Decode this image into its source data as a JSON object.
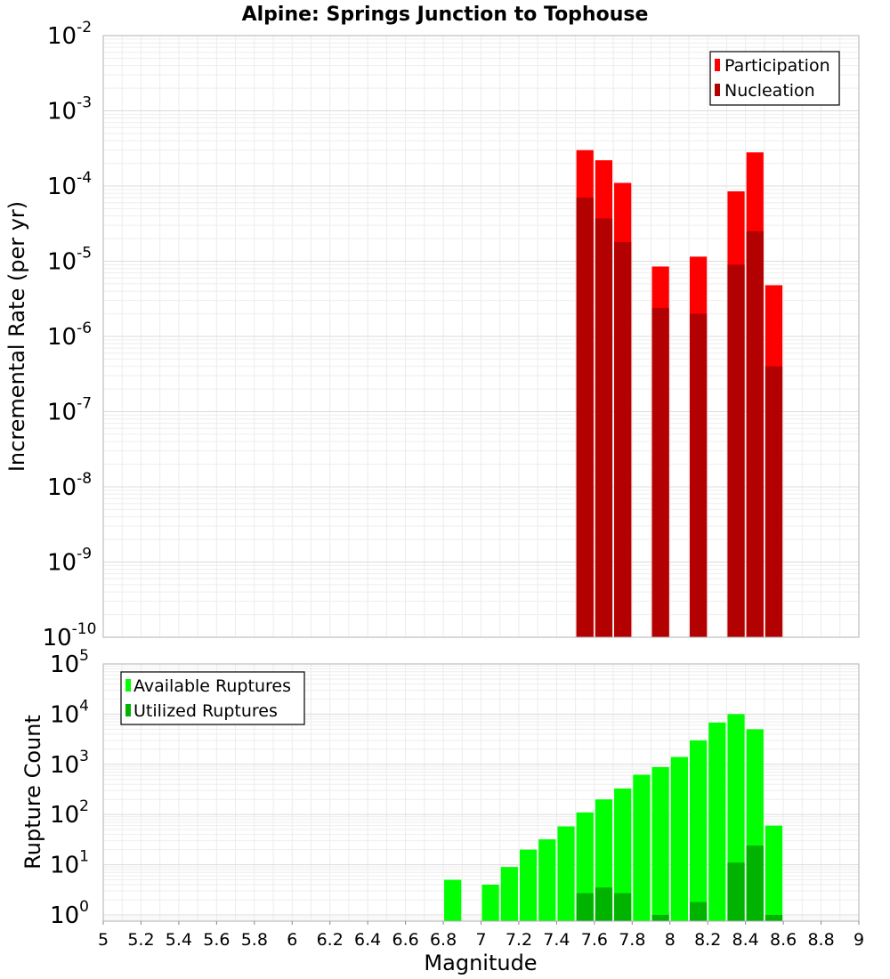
{
  "title": "Alpine: Springs Junction to Tophouse",
  "chart_data": [
    {
      "type": "bar",
      "scale": "log",
      "ylabel": "Incremental Rate (per yr)",
      "xlabel": "",
      "xlim": [
        5,
        9
      ],
      "ylim": [
        1e-10,
        0.01
      ],
      "y_ticks": [
        {
          "base": "10",
          "exp": "-10",
          "value": 1e-10
        },
        {
          "base": "10",
          "exp": "-9",
          "value": 1e-09
        },
        {
          "base": "10",
          "exp": "-8",
          "value": 1e-08
        },
        {
          "base": "10",
          "exp": "-7",
          "value": 1e-07
        },
        {
          "base": "10",
          "exp": "-6",
          "value": 1e-06
        },
        {
          "base": "10",
          "exp": "-5",
          "value": 1e-05
        },
        {
          "base": "10",
          "exp": "-4",
          "value": 0.0001
        },
        {
          "base": "10",
          "exp": "-3",
          "value": 0.001
        },
        {
          "base": "10",
          "exp": "-2",
          "value": 0.01
        }
      ],
      "grid": true,
      "legend_position": "top-right",
      "bin_width": 0.1,
      "series": [
        {
          "name": "Participation",
          "color": "#ff0000",
          "points": [
            {
              "x": 7.55,
              "y": 0.0003
            },
            {
              "x": 7.65,
              "y": 0.00022
            },
            {
              "x": 7.75,
              "y": 0.00011
            },
            {
              "x": 7.95,
              "y": 8.5e-06
            },
            {
              "x": 8.15,
              "y": 1.15e-05
            },
            {
              "x": 8.35,
              "y": 8.5e-05
            },
            {
              "x": 8.45,
              "y": 0.00028
            },
            {
              "x": 8.55,
              "y": 4.8e-06
            }
          ]
        },
        {
          "name": "Nucleation",
          "color": "#b30000",
          "points": [
            {
              "x": 7.55,
              "y": 7e-05
            },
            {
              "x": 7.65,
              "y": 3.7e-05
            },
            {
              "x": 7.75,
              "y": 1.8e-05
            },
            {
              "x": 7.95,
              "y": 2.4e-06
            },
            {
              "x": 8.15,
              "y": 2e-06
            },
            {
              "x": 8.35,
              "y": 9e-06
            },
            {
              "x": 8.45,
              "y": 2.5e-05
            },
            {
              "x": 8.55,
              "y": 4e-07
            }
          ]
        }
      ]
    },
    {
      "type": "bar",
      "scale": "log",
      "ylabel": "Rupture Count",
      "xlabel": "Magnitude",
      "xlim": [
        5,
        9
      ],
      "ylim": [
        0.75,
        100000.0
      ],
      "x_ticks": [
        "5",
        "5.2",
        "5.4",
        "5.6",
        "5.8",
        "6",
        "6.2",
        "6.4",
        "6.6",
        "6.8",
        "7",
        "7.2",
        "7.4",
        "7.6",
        "7.8",
        "8",
        "8.2",
        "8.4",
        "8.6",
        "8.8",
        "9"
      ],
      "y_ticks": [
        {
          "base": "10",
          "exp": "0",
          "value": 1
        },
        {
          "base": "10",
          "exp": "1",
          "value": 10
        },
        {
          "base": "10",
          "exp": "2",
          "value": 100
        },
        {
          "base": "10",
          "exp": "3",
          "value": 1000
        },
        {
          "base": "10",
          "exp": "4",
          "value": 10000
        },
        {
          "base": "10",
          "exp": "5",
          "value": 100000
        }
      ],
      "grid": true,
      "legend_position": "top-left",
      "bin_width": 0.1,
      "series": [
        {
          "name": "Available Ruptures",
          "color": "#00ff00",
          "points": [
            {
              "x": 6.85,
              "y": 5
            },
            {
              "x": 7.05,
              "y": 4
            },
            {
              "x": 7.15,
              "y": 9
            },
            {
              "x": 7.25,
              "y": 20
            },
            {
              "x": 7.35,
              "y": 32
            },
            {
              "x": 7.45,
              "y": 58
            },
            {
              "x": 7.55,
              "y": 110
            },
            {
              "x": 7.65,
              "y": 200
            },
            {
              "x": 7.75,
              "y": 330
            },
            {
              "x": 7.85,
              "y": 620
            },
            {
              "x": 7.95,
              "y": 880
            },
            {
              "x": 8.05,
              "y": 1400
            },
            {
              "x": 8.15,
              "y": 3000
            },
            {
              "x": 8.25,
              "y": 6800
            },
            {
              "x": 8.35,
              "y": 10000
            },
            {
              "x": 8.45,
              "y": 5000
            },
            {
              "x": 8.55,
              "y": 60
            }
          ]
        },
        {
          "name": "Utilized Ruptures",
          "color": "#00b300",
          "points": [
            {
              "x": 7.55,
              "y": 2.7
            },
            {
              "x": 7.65,
              "y": 3.5
            },
            {
              "x": 7.75,
              "y": 2.7
            },
            {
              "x": 7.95,
              "y": 1
            },
            {
              "x": 8.15,
              "y": 1.8
            },
            {
              "x": 8.35,
              "y": 11
            },
            {
              "x": 8.45,
              "y": 24
            },
            {
              "x": 8.55,
              "y": 1
            }
          ]
        }
      ]
    }
  ]
}
